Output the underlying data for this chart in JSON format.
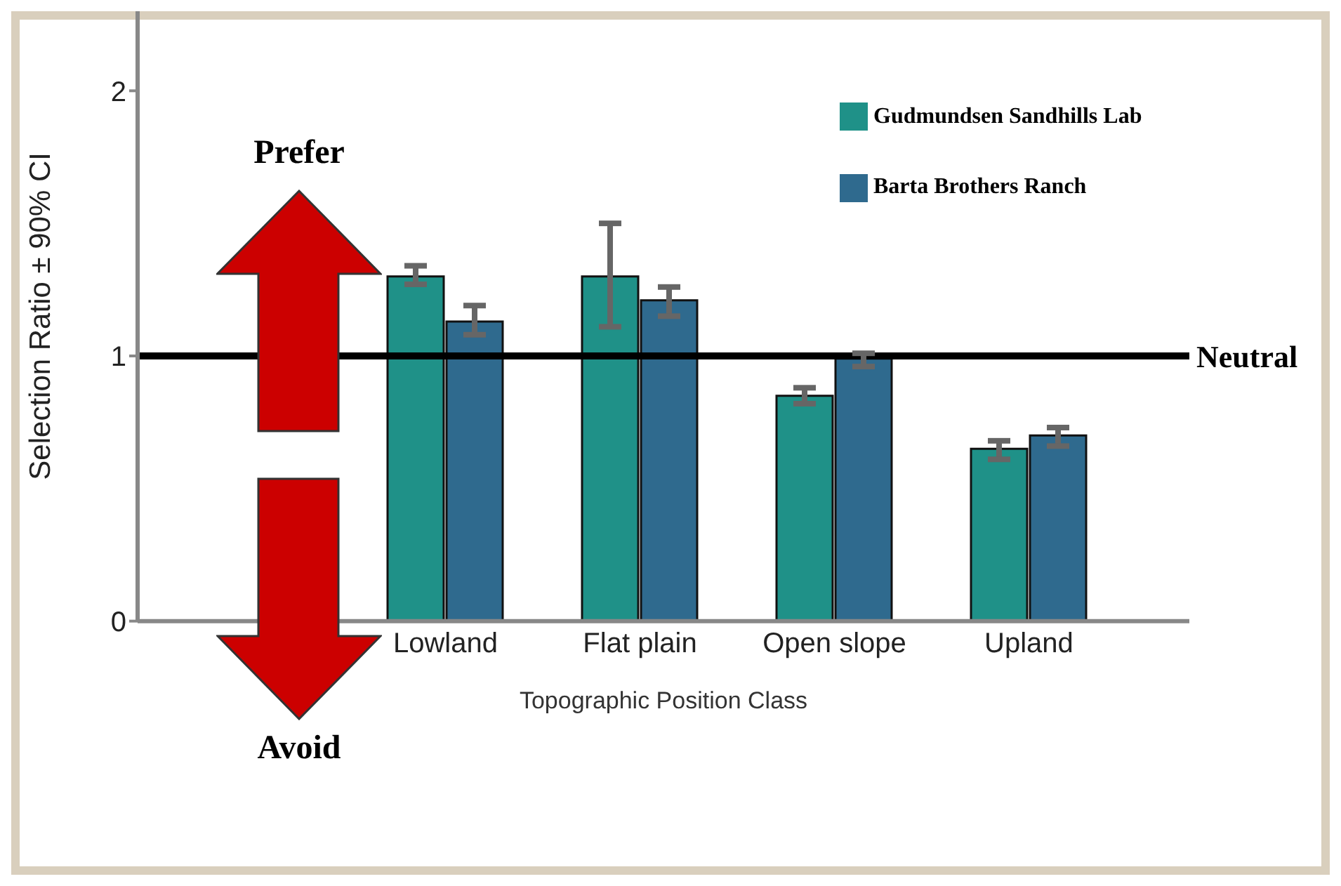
{
  "chart_data": {
    "type": "bar",
    "categories": [
      "Lowland",
      "Flat plain",
      "Open slope",
      "Upland"
    ],
    "series": [
      {
        "name": "Gudmundsen Sandhills Lab",
        "color": "#1f9188",
        "values": [
          1.3,
          1.3,
          0.85,
          0.65
        ],
        "errors": [
          [
            1.27,
            1.34
          ],
          [
            1.11,
            1.5
          ],
          [
            0.82,
            0.88
          ],
          [
            0.61,
            0.68
          ]
        ]
      },
      {
        "name": "Barta Brothers Ranch",
        "color": "#2f6a8e",
        "values": [
          1.13,
          1.21,
          0.99,
          0.7
        ],
        "errors": [
          [
            1.08,
            1.19
          ],
          [
            1.15,
            1.26
          ],
          [
            0.96,
            1.01
          ],
          [
            0.66,
            0.73
          ]
        ]
      }
    ],
    "ylabel": "Selection Ratio ± 90% CI",
    "xlabel": "Topographic Position Class",
    "ylim": [
      0,
      2.3
    ],
    "yticks": [
      0,
      1,
      2
    ],
    "grid": false,
    "legend": "top right",
    "ref_lines": [
      {
        "axis": "y",
        "value": 1,
        "label": "Neutral",
        "color": "#000000"
      }
    ],
    "annotations": [
      "Prefer",
      "Avoid"
    ]
  }
}
